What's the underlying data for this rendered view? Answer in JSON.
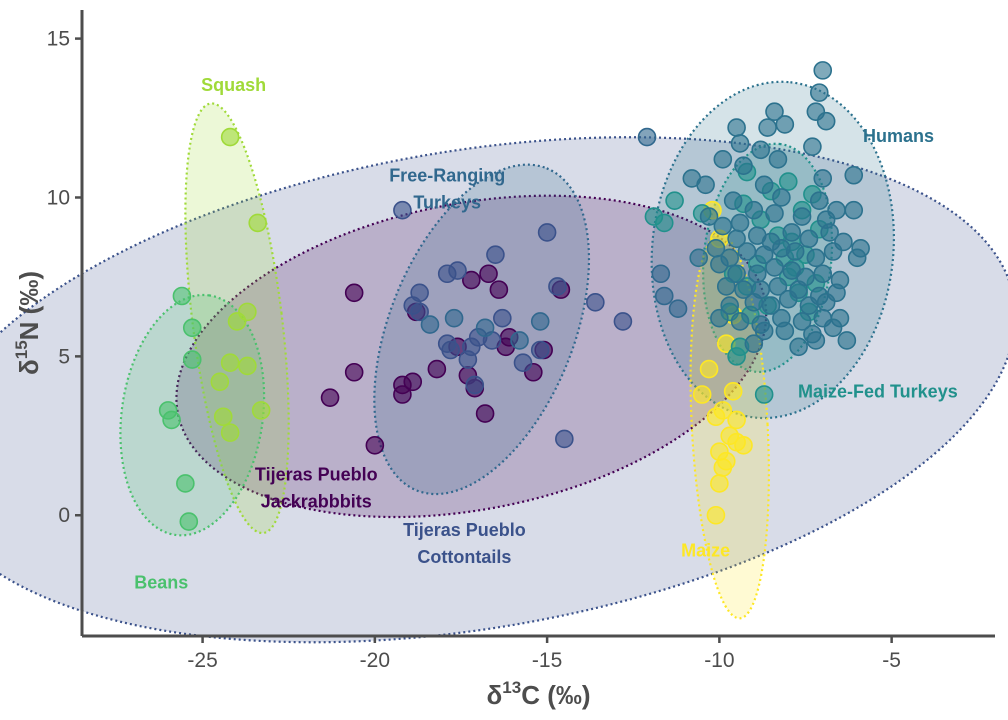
{
  "chart_data": {
    "type": "scatter",
    "xlabel": {
      "main": "δ",
      "sup": "13",
      "rest": "C (‰)"
    },
    "ylabel": {
      "main": "δ",
      "sup": "15",
      "rest": "N (‰)"
    },
    "xlim": [
      -28.5,
      -2
    ],
    "ylim": [
      -3.8,
      15.9
    ],
    "xticks": [
      -25,
      -20,
      -15,
      -10,
      -5
    ],
    "yticks": [
      0,
      5,
      10,
      15
    ],
    "grid": false,
    "legend": "none",
    "series": [
      {
        "name": "Squash",
        "color": "#a0da39",
        "label_lines": [
          "Squash"
        ],
        "ellipse": {
          "cx": -24.0,
          "cy": 6.2,
          "rx": 1.3,
          "ry": 6.8,
          "angle": -7
        },
        "points": [
          [
            -24.2,
            11.9
          ],
          [
            -23.4,
            9.2
          ],
          [
            -23.7,
            6.4
          ],
          [
            -24.0,
            6.1
          ],
          [
            -24.2,
            4.8
          ],
          [
            -23.7,
            4.7
          ],
          [
            -24.5,
            4.2
          ],
          [
            -24.4,
            3.1
          ],
          [
            -24.2,
            2.6
          ],
          [
            -23.3,
            3.3
          ]
        ]
      },
      {
        "name": "Beans",
        "color": "#4ac16d",
        "label_lines": [
          "Beans"
        ],
        "ellipse": {
          "cx": -25.3,
          "cy": 3.15,
          "rx": 3.8,
          "ry": 2.05,
          "angle": -82
        },
        "points": [
          [
            -25.6,
            6.9
          ],
          [
            -25.3,
            5.9
          ],
          [
            -25.3,
            4.9
          ],
          [
            -26.0,
            3.3
          ],
          [
            -25.9,
            3.0
          ],
          [
            -25.5,
            1.0
          ],
          [
            -25.4,
            -0.2
          ]
        ]
      },
      {
        "name": "Tijeras Pueblo Jackrabbbits",
        "color": "#440154",
        "label_lines": [
          "Tijeras Pueblo",
          "Jackrabbbits"
        ],
        "ellipse": {
          "cx": -17.2,
          "cy": 5.0,
          "rx": 8.7,
          "ry": 4.8,
          "angle": -11
        },
        "points": [
          [
            -20.6,
            7.0
          ],
          [
            -18.8,
            6.4
          ],
          [
            -16.7,
            7.6
          ],
          [
            -16.4,
            7.1
          ],
          [
            -16.1,
            5.6
          ],
          [
            -16.2,
            5.3
          ],
          [
            -17.6,
            5.3
          ],
          [
            -18.2,
            4.6
          ],
          [
            -19.2,
            4.1
          ],
          [
            -18.9,
            4.2
          ],
          [
            -19.2,
            3.8
          ],
          [
            -17.3,
            4.4
          ],
          [
            -17.1,
            4.0
          ],
          [
            -20.6,
            4.5
          ],
          [
            -21.3,
            3.7
          ],
          [
            -20.0,
            2.2
          ],
          [
            -15.4,
            4.5
          ],
          [
            -16.8,
            3.2
          ],
          [
            -15.1,
            5.2
          ],
          [
            -14.6,
            7.1
          ],
          [
            -17.2,
            7.4
          ]
        ]
      },
      {
        "name": "Tijeras Pueblo Cottontails",
        "color": "#3b528b",
        "label_lines": [
          "Tijeras Pueblo",
          "Cottontails"
        ],
        "ellipse": {
          "cx": -17.2,
          "cy": 3.95,
          "rx": 16.0,
          "ry": 7.5,
          "angle": -9.5
        },
        "points": [
          [
            -19.2,
            9.6
          ],
          [
            -15.0,
            8.9
          ],
          [
            -16.5,
            8.2
          ],
          [
            -18.7,
            7.0
          ],
          [
            -14.7,
            7.2
          ],
          [
            -17.9,
            7.6
          ],
          [
            -17.6,
            7.7
          ],
          [
            -18.9,
            6.6
          ],
          [
            -16.3,
            6.2
          ],
          [
            -17.0,
            5.6
          ],
          [
            -17.2,
            5.3
          ],
          [
            -17.8,
            5.2
          ],
          [
            -17.3,
            4.9
          ],
          [
            -17.1,
            4.1
          ],
          [
            -15.7,
            4.8
          ],
          [
            -15.2,
            5.2
          ],
          [
            -18.7,
            6.4
          ],
          [
            -14.5,
            2.4
          ],
          [
            -13.6,
            6.7
          ],
          [
            -12.8,
            6.1
          ],
          [
            -17.9,
            5.4
          ],
          [
            -16.6,
            5.5
          ]
        ]
      },
      {
        "name": "Free-Ranging Turkeys",
        "color": "#31688e",
        "label_lines": [
          "Free-Ranging",
          "Turkeys"
        ],
        "ellipse": {
          "cx": -16.9,
          "cy": 5.85,
          "rx": 5.4,
          "ry": 2.7,
          "angle": -68
        },
        "points": [
          [
            -12.1,
            11.9
          ],
          [
            -11.7,
            7.6
          ],
          [
            -11.6,
            6.9
          ],
          [
            -11.2,
            6.5
          ],
          [
            -18.4,
            6.0
          ],
          [
            -17.7,
            6.2
          ],
          [
            -15.2,
            6.1
          ],
          [
            -15.8,
            5.5
          ],
          [
            -16.8,
            5.9
          ]
        ]
      },
      {
        "name": "Maize",
        "color": "#fde725",
        "label_lines": [
          "Maize"
        ],
        "ellipse": {
          "cx": -9.7,
          "cy": 2.8,
          "rx": 1.1,
          "ry": 6.05,
          "angle": -3
        },
        "points": [
          [
            -10.2,
            9.6
          ],
          [
            -10.0,
            8.7
          ],
          [
            -9.6,
            6.3
          ],
          [
            -9.8,
            5.4
          ],
          [
            -10.3,
            4.6
          ],
          [
            -9.6,
            3.9
          ],
          [
            -10.5,
            3.8
          ],
          [
            -10.1,
            3.1
          ],
          [
            -9.9,
            3.3
          ],
          [
            -9.5,
            3.0
          ],
          [
            -9.7,
            2.5
          ],
          [
            -9.5,
            2.3
          ],
          [
            -10.0,
            2.0
          ],
          [
            -9.8,
            1.7
          ],
          [
            -9.9,
            1.5
          ],
          [
            -10.0,
            1.0
          ],
          [
            -10.1,
            0.0
          ],
          [
            -9.3,
            2.2
          ]
        ]
      },
      {
        "name": "Maize-Fed Turkeys",
        "color": "#21918c",
        "label_lines": [
          "Maize-Fed Turkeys"
        ],
        "ellipse": {
          "cx": -8.6,
          "cy": 8.1,
          "rx": 3.6,
          "ry": 1.85,
          "angle": -84
        },
        "points": [
          [
            -11.3,
            9.9
          ],
          [
            -11.9,
            9.4
          ],
          [
            -11.6,
            9.2
          ],
          [
            -10.5,
            9.5
          ],
          [
            -9.2,
            10.8
          ],
          [
            -8.5,
            10.2
          ],
          [
            -8.0,
            10.5
          ],
          [
            -7.3,
            10.1
          ],
          [
            -7.6,
            9.6
          ],
          [
            -8.8,
            9.3
          ],
          [
            -8.3,
            8.8
          ],
          [
            -7.9,
            8.6
          ],
          [
            -7.1,
            9.0
          ],
          [
            -7.5,
            8.2
          ],
          [
            -8.9,
            7.9
          ],
          [
            -9.6,
            7.6
          ],
          [
            -9.2,
            7.2
          ],
          [
            -8.0,
            7.5
          ],
          [
            -7.7,
            7.0
          ],
          [
            -7.2,
            7.3
          ],
          [
            -8.6,
            6.6
          ],
          [
            -9.1,
            6.3
          ],
          [
            -7.4,
            6.4
          ],
          [
            -9.7,
            6.4
          ],
          [
            -9.4,
            5.3
          ],
          [
            -9.5,
            5.0
          ],
          [
            -8.7,
            3.8
          ],
          [
            -9.3,
            9.8
          ],
          [
            -8.1,
            8.1
          ],
          [
            -7.8,
            7.8
          ]
        ]
      },
      {
        "name": "Humans",
        "color": "#2c728e",
        "label_lines": [
          "Humans"
        ],
        "ellipse": {
          "cx": -8.45,
          "cy": 8.35,
          "rx": 5.3,
          "ry": 3.5,
          "angle": -84
        },
        "points": [
          [
            -7.0,
            14.0
          ],
          [
            -7.1,
            13.3
          ],
          [
            -7.2,
            12.7
          ],
          [
            -6.9,
            12.4
          ],
          [
            -8.4,
            12.7
          ],
          [
            -9.5,
            12.2
          ],
          [
            -9.4,
            11.7
          ],
          [
            -8.1,
            12.3
          ],
          [
            -8.6,
            12.2
          ],
          [
            -8.8,
            11.5
          ],
          [
            -8.3,
            11.2
          ],
          [
            -7.3,
            11.6
          ],
          [
            -6.1,
            10.7
          ],
          [
            -7.0,
            10.6
          ],
          [
            -9.9,
            11.2
          ],
          [
            -9.3,
            11.0
          ],
          [
            -8.7,
            10.4
          ],
          [
            -8.2,
            10.0
          ],
          [
            -7.1,
            9.9
          ],
          [
            -10.4,
            10.4
          ],
          [
            -10.8,
            10.6
          ],
          [
            -9.6,
            9.9
          ],
          [
            -9.0,
            9.6
          ],
          [
            -8.4,
            9.5
          ],
          [
            -7.6,
            9.4
          ],
          [
            -6.6,
            9.6
          ],
          [
            -6.1,
            9.6
          ],
          [
            -10.3,
            9.4
          ],
          [
            -9.9,
            9.1
          ],
          [
            -9.4,
            9.2
          ],
          [
            -8.9,
            8.8
          ],
          [
            -8.5,
            8.6
          ],
          [
            -7.9,
            8.9
          ],
          [
            -7.4,
            8.7
          ],
          [
            -6.8,
            8.9
          ],
          [
            -6.4,
            8.6
          ],
          [
            -10.1,
            8.4
          ],
          [
            -9.7,
            8.1
          ],
          [
            -9.2,
            8.3
          ],
          [
            -8.7,
            8.2
          ],
          [
            -8.2,
            8.4
          ],
          [
            -7.8,
            8.3
          ],
          [
            -7.2,
            8.1
          ],
          [
            -6.7,
            8.3
          ],
          [
            -5.9,
            8.4
          ],
          [
            -6.0,
            8.1
          ],
          [
            -10.0,
            7.9
          ],
          [
            -9.5,
            7.6
          ],
          [
            -8.9,
            7.6
          ],
          [
            -8.4,
            7.8
          ],
          [
            -7.9,
            7.7
          ],
          [
            -7.5,
            7.5
          ],
          [
            -7.0,
            7.6
          ],
          [
            -6.5,
            7.4
          ],
          [
            -9.8,
            7.2
          ],
          [
            -9.3,
            7.1
          ],
          [
            -8.8,
            7.1
          ],
          [
            -8.3,
            7.2
          ],
          [
            -7.7,
            7.1
          ],
          [
            -7.1,
            6.9
          ],
          [
            -6.6,
            7.0
          ],
          [
            -9.7,
            6.6
          ],
          [
            -9.0,
            6.7
          ],
          [
            -8.5,
            6.6
          ],
          [
            -8.0,
            6.8
          ],
          [
            -7.4,
            6.6
          ],
          [
            -6.9,
            6.7
          ],
          [
            -10.0,
            6.2
          ],
          [
            -9.4,
            6.1
          ],
          [
            -8.8,
            6.0
          ],
          [
            -8.2,
            6.2
          ],
          [
            -7.6,
            6.1
          ],
          [
            -7.0,
            6.2
          ],
          [
            -6.5,
            6.2
          ],
          [
            -8.1,
            5.8
          ],
          [
            -7.3,
            5.7
          ],
          [
            -6.7,
            5.9
          ],
          [
            -6.3,
            5.5
          ],
          [
            -9.0,
            5.4
          ],
          [
            -7.7,
            5.3
          ],
          [
            -7.2,
            5.5
          ],
          [
            -8.7,
            5.8
          ],
          [
            -9.5,
            8.7
          ],
          [
            -6.9,
            9.3
          ],
          [
            -10.6,
            8.1
          ]
        ]
      }
    ],
    "labels": [
      {
        "series": "Squash",
        "x": -24.1,
        "y": 13.35,
        "y2": null,
        "color": "#a0da39"
      },
      {
        "series": "Beans",
        "x": -26.2,
        "y": -2.3,
        "y2": null,
        "color": "#4ac16d"
      },
      {
        "series": "Tijeras Pueblo Jackrabbbits",
        "x": -21.7,
        "y": 1.1,
        "y2": 0.25,
        "color": "#440154"
      },
      {
        "series": "Tijeras Pueblo Cottontails",
        "x": -17.4,
        "y": -0.65,
        "y2": -1.5,
        "color": "#3b528b"
      },
      {
        "series": "Free-Ranging Turkeys",
        "x": -17.9,
        "y": 10.5,
        "y2": 9.65,
        "color": "#31688e"
      },
      {
        "series": "Maize",
        "x": -10.4,
        "y": -1.3,
        "y2": null,
        "color": "#fde725"
      },
      {
        "series": "Maize-Fed Turkeys",
        "x": -5.4,
        "y": 3.7,
        "y2": null,
        "color": "#21918c"
      },
      {
        "series": "Humans",
        "x": -4.8,
        "y": 11.75,
        "y2": null,
        "color": "#2c728e"
      }
    ]
  }
}
